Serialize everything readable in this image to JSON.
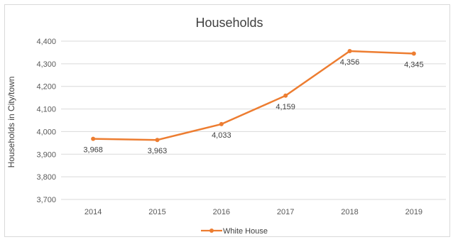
{
  "chart_data": {
    "type": "line",
    "title": "Households",
    "ylabel": "Households in City/town",
    "xlabel": "",
    "categories": [
      "2014",
      "2015",
      "2016",
      "2017",
      "2018",
      "2019"
    ],
    "series": [
      {
        "name": "White House",
        "values": [
          3968,
          3963,
          4033,
          4159,
          4356,
          4345
        ],
        "color": "#ED7D31"
      }
    ],
    "data_labels": [
      "3,968",
      "3,963",
      "4,033",
      "4,159",
      "4,356",
      "4,345"
    ],
    "ylim": [
      3700,
      4400
    ],
    "yticks": [
      3700,
      3800,
      3900,
      4000,
      4100,
      4200,
      4300,
      4400
    ],
    "ytick_labels": [
      "3,700",
      "3,800",
      "3,900",
      "4,000",
      "4,100",
      "4,200",
      "4,300",
      "4,400"
    ],
    "grid": true,
    "gridline_color": "#d9d9d9",
    "legend_position": "bottom"
  }
}
